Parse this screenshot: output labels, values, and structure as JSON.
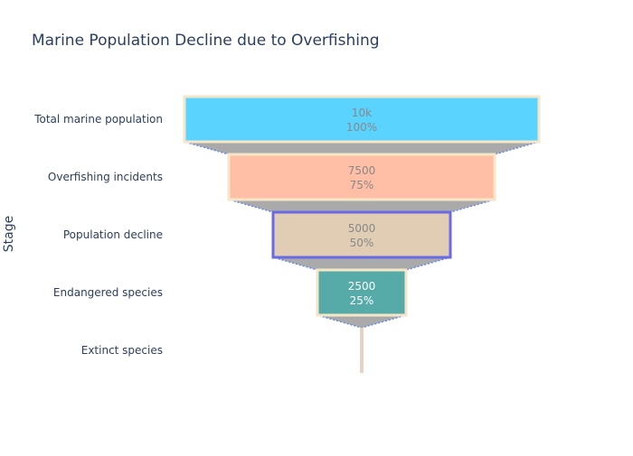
{
  "chart_data": {
    "type": "funnel",
    "title": "Marine Population Decline due to Overfishing",
    "ylabel": "Stage",
    "categories": [
      "Total marine population",
      "Overfishing incidents",
      "Population decline",
      "Endangered species",
      "Extinct species"
    ],
    "values": [
      10000,
      7500,
      5000,
      2500,
      0
    ],
    "value_labels": [
      "10k",
      "7500",
      "5000",
      "2500",
      ""
    ],
    "percent_labels": [
      "100%",
      "75%",
      "50%",
      "25%",
      ""
    ],
    "bar_colors": [
      "#5bd3ff",
      "#ffbfa6",
      "#e0cdb3",
      "#56aaa8",
      "#e6d3c3"
    ],
    "bar_border_colors": [
      "#f5e6c8",
      "#f5e6c8",
      "#6a6ae6",
      "#f5e6c8",
      "#e6d3c3"
    ],
    "label_colors": [
      "#888888",
      "#888888",
      "#888888",
      "#ffffff",
      "#888888"
    ],
    "connector_color": "#aaaaaa",
    "connector_line_color": "#6a8ae6"
  }
}
